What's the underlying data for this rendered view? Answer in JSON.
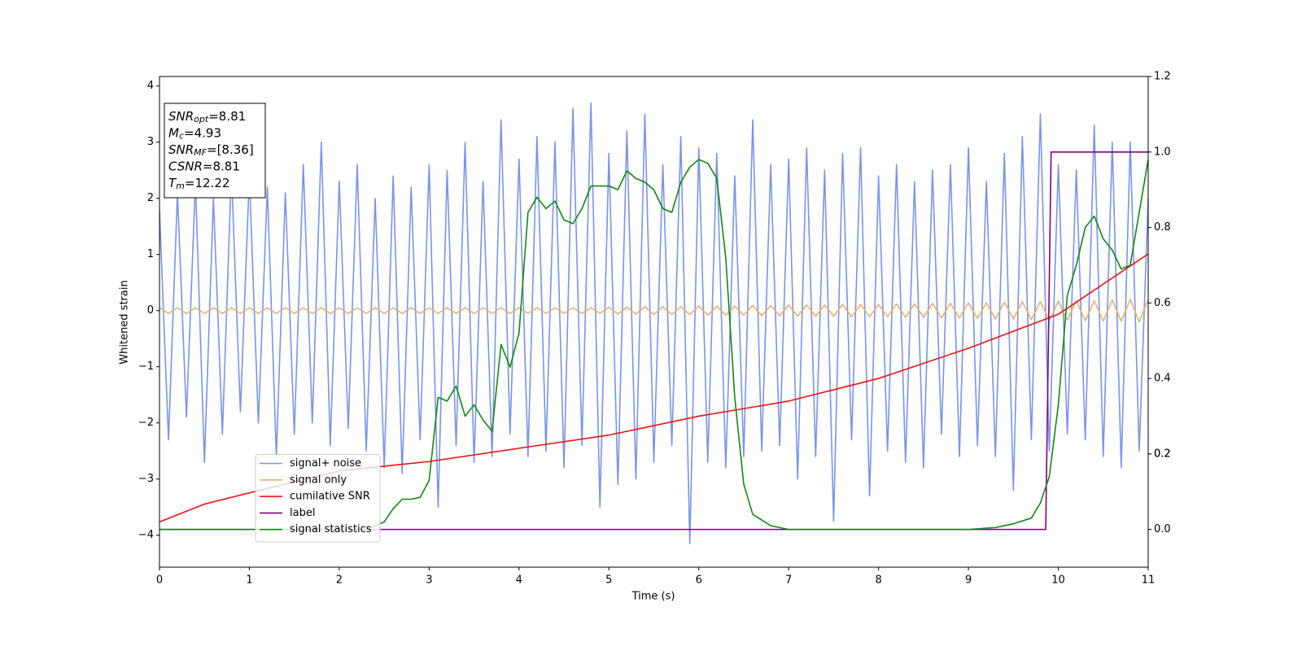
{
  "chart_data": {
    "type": "line",
    "xlabel": "Time (s)",
    "ylabel": "Whitened strain",
    "xlim": [
      0,
      11
    ],
    "xticks": [
      0,
      1,
      2,
      3,
      4,
      5,
      6,
      7,
      8,
      9,
      10,
      11
    ],
    "ylim": [
      -4.57,
      4.17
    ],
    "yticks": [
      {
        "value": -4,
        "label": "−4"
      },
      {
        "value": -3,
        "label": "−3"
      },
      {
        "value": -2,
        "label": "−2"
      },
      {
        "value": -1,
        "label": "−1"
      },
      0,
      1,
      2,
      3,
      4
    ],
    "y2lim": [
      -0.1,
      1.2
    ],
    "y2ticks": [
      {
        "value": 0,
        "label": "0.0"
      },
      0.2,
      0.4,
      0.6,
      0.8,
      {
        "value": 1,
        "label": "1.0"
      },
      0.2,
      1.2
    ],
    "legend": "lower left",
    "x": [
      0,
      0.1,
      0.2,
      0.3,
      0.4,
      0.5,
      0.6,
      0.7,
      0.8,
      0.9,
      1,
      1.1,
      1.2,
      1.3,
      1.4,
      1.5,
      1.6,
      1.7,
      1.8,
      1.9,
      2,
      2.1,
      2.2,
      2.3,
      2.4,
      2.5,
      2.6,
      2.7,
      2.8,
      2.9,
      3,
      3.1,
      3.2,
      3.3,
      3.4,
      3.5,
      3.6,
      3.7,
      3.8,
      3.9,
      4,
      4.1,
      4.2,
      4.3,
      4.4,
      4.5,
      4.6,
      4.7,
      4.8,
      4.9,
      5,
      5.1,
      5.2,
      5.3,
      5.4,
      5.5,
      5.6,
      5.7,
      5.8,
      5.9,
      6,
      6.1,
      6.2,
      6.3,
      6.4,
      6.5,
      6.6,
      6.7,
      6.8,
      6.9,
      7,
      7.1,
      7.2,
      7.3,
      7.4,
      7.5,
      7.6,
      7.7,
      7.8,
      7.9,
      8,
      8.1,
      8.2,
      8.3,
      8.4,
      8.5,
      8.6,
      8.7,
      8.8,
      8.9,
      9,
      9.1,
      9.2,
      9.3,
      9.4,
      9.5,
      9.6,
      9.7,
      9.8,
      9.9,
      10,
      10.1,
      10.2,
      10.3,
      10.4,
      10.5,
      10.6,
      10.7,
      10.8,
      10.9,
      11
    ],
    "series": [
      {
        "name": "signal+ noise",
        "color": "#7994e8",
        "values": [
          1.8,
          -2.3,
          2.1,
          -1.9,
          2.3,
          -2.7,
          2.0,
          -2.2,
          2.5,
          -1.8,
          2.4,
          -2.0,
          2.2,
          -2.6,
          2.1,
          -2.2,
          2.6,
          -2.0,
          3.0,
          -2.4,
          2.3,
          -2.1,
          2.6,
          -2.5,
          2.0,
          -2.8,
          2.4,
          -2.9,
          2.2,
          -2.3,
          2.6,
          -3.5,
          2.5,
          -2.4,
          3.0,
          -2.7,
          2.3,
          -2.6,
          3.4,
          -2.2,
          2.7,
          -2.6,
          3.1,
          -2.5,
          3.0,
          -2.8,
          3.6,
          -2.4,
          3.7,
          -3.5,
          2.8,
          -3.1,
          3.2,
          -3.0,
          3.5,
          -2.7,
          2.6,
          -2.4,
          3.1,
          -4.15,
          2.9,
          -2.7,
          2.8,
          -2.8,
          2.4,
          -2.6,
          3.4,
          -2.5,
          2.6,
          -2.4,
          2.7,
          -3.0,
          2.9,
          -2.6,
          2.5,
          -3.75,
          2.8,
          -2.3,
          2.9,
          -3.3,
          2.4,
          -2.5,
          2.6,
          -2.7,
          2.3,
          -2.8,
          2.5,
          -2.2,
          2.6,
          -2.6,
          2.9,
          -2.4,
          2.3,
          -2.6,
          2.8,
          -3.2,
          3.1,
          -2.3,
          3.5,
          -2.5,
          2.6,
          -2.2,
          2.5,
          -2.3,
          3.3,
          -2.6,
          3.0,
          -2.8,
          3.0,
          -2.5,
          2.0
        ]
      },
      {
        "name": "signal only",
        "color": "#e8b070",
        "values": [
          0.05,
          -0.05,
          0.05,
          -0.05,
          0.05,
          -0.05,
          0.05,
          -0.05,
          0.05,
          -0.05,
          0.05,
          -0.05,
          0.05,
          -0.05,
          0.05,
          -0.05,
          0.05,
          -0.05,
          0.05,
          -0.05,
          0.05,
          -0.05,
          0.05,
          -0.05,
          0.05,
          -0.05,
          0.05,
          -0.05,
          0.05,
          -0.05,
          0.05,
          -0.05,
          0.05,
          -0.05,
          0.05,
          -0.05,
          0.05,
          -0.05,
          0.05,
          -0.05,
          0.05,
          -0.05,
          0.05,
          -0.05,
          0.05,
          -0.05,
          0.05,
          -0.05,
          0.05,
          -0.05,
          0.06,
          -0.06,
          0.06,
          -0.06,
          0.07,
          -0.07,
          0.07,
          -0.07,
          0.07,
          -0.07,
          0.08,
          -0.08,
          0.08,
          -0.08,
          0.08,
          -0.08,
          0.09,
          -0.09,
          0.09,
          -0.09,
          0.1,
          -0.1,
          0.1,
          -0.1,
          0.1,
          -0.1,
          0.11,
          -0.11,
          0.11,
          -0.11,
          0.11,
          -0.11,
          0.12,
          -0.12,
          0.12,
          -0.12,
          0.13,
          -0.13,
          0.13,
          -0.13,
          0.14,
          -0.14,
          0.14,
          -0.15,
          0.15,
          -0.15,
          0.16,
          -0.16,
          0.16,
          -0.17,
          0.17,
          -0.17,
          0.18,
          -0.18,
          0.18,
          -0.19,
          0.19,
          -0.19,
          0.2,
          -0.2,
          0.2
        ]
      },
      {
        "name": "cumilative SNR",
        "color": "#ee1111",
        "axis": "y2",
        "x": [
          0,
          0.5,
          1,
          2,
          3,
          4,
          5,
          6,
          7,
          8,
          9,
          10,
          11
        ],
        "values": [
          0.02,
          0.067,
          0.097,
          0.155,
          0.18,
          0.215,
          0.25,
          0.3,
          0.34,
          0.4,
          0.48,
          0.57,
          0.73
        ]
      },
      {
        "name": "label",
        "color": "#800080",
        "axis": "y2",
        "x": [
          0,
          9.86,
          9.92,
          11
        ],
        "values": [
          0,
          0,
          1,
          1
        ]
      },
      {
        "name": "signal statistics",
        "color": "#118811",
        "axis": "y2",
        "x": [
          0,
          2.3,
          2.5,
          2.6,
          2.7,
          2.8,
          2.9,
          3.0,
          3.1,
          3.2,
          3.3,
          3.4,
          3.5,
          3.6,
          3.7,
          3.8,
          3.9,
          4.0,
          4.1,
          4.2,
          4.3,
          4.4,
          4.5,
          4.6,
          4.7,
          4.8,
          5.0,
          5.1,
          5.2,
          5.3,
          5.4,
          5.5,
          5.6,
          5.7,
          5.8,
          5.9,
          6.0,
          6.1,
          6.2,
          6.3,
          6.4,
          6.5,
          6.6,
          6.8,
          7.0,
          9.0,
          9.3,
          9.5,
          9.7,
          9.8,
          9.9,
          10.0,
          10.1,
          10.2,
          10.3,
          10.4,
          10.5,
          10.6,
          10.7,
          10.8,
          10.9,
          11.0
        ],
        "values": [
          0,
          0,
          0.02,
          0.055,
          0.08,
          0.08,
          0.085,
          0.13,
          0.35,
          0.34,
          0.38,
          0.3,
          0.33,
          0.29,
          0.26,
          0.49,
          0.43,
          0.52,
          0.84,
          0.88,
          0.85,
          0.87,
          0.82,
          0.81,
          0.85,
          0.91,
          0.91,
          0.9,
          0.95,
          0.93,
          0.92,
          0.9,
          0.85,
          0.84,
          0.92,
          0.96,
          0.98,
          0.97,
          0.93,
          0.72,
          0.35,
          0.12,
          0.04,
          0.01,
          0,
          0,
          0.005,
          0.015,
          0.03,
          0.07,
          0.14,
          0.33,
          0.62,
          0.7,
          0.8,
          0.83,
          0.77,
          0.74,
          0.69,
          0.7,
          0.84,
          0.98
        ]
      }
    ],
    "annotation": [
      {
        "symbol": "SNR",
        "subscript": "opt",
        "text": "=8.81"
      },
      {
        "symbol": "M",
        "subscript": "c",
        "text": "=4.93"
      },
      {
        "symbol": "SNR",
        "subscript": "MF",
        "text": "=[8.36]"
      },
      {
        "symbol": "CSNR",
        "text": "=8.81"
      },
      {
        "symbol": "T",
        "subscript": "m",
        "text": "=12.22"
      }
    ]
  }
}
